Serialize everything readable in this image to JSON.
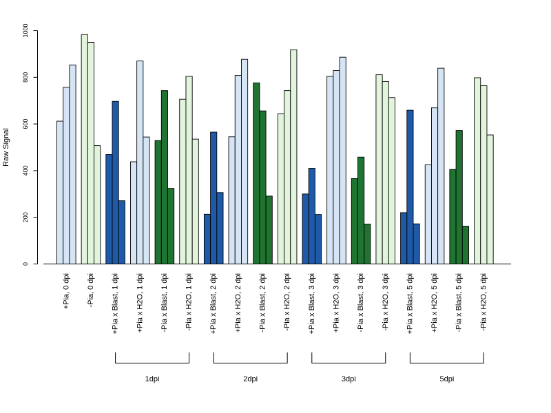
{
  "chart_data": {
    "type": "bar",
    "title": "",
    "ylabel": "Raw Signal",
    "xlabel": "",
    "ylim": [
      0,
      1000
    ],
    "yticks": [
      0,
      200,
      400,
      600,
      800,
      1000
    ],
    "grid": false,
    "legend": "none",
    "colors": {
      "light_blue": "#d6e5f5",
      "light_green": "#e2f5dc",
      "dark_blue": "#1f5aa8",
      "dark_green": "#1f7431"
    },
    "groups": [
      {
        "label": "+Pia, 0 dpi",
        "color": "light_blue",
        "values": [
          612,
          757,
          853
        ]
      },
      {
        "label": "-Pia, 0 dpi",
        "color": "light_green",
        "values": [
          983,
          950,
          507
        ]
      },
      {
        "label": "+Pia x Blast, 1 dpi",
        "color": "dark_blue",
        "values": [
          469,
          697,
          271
        ]
      },
      {
        "label": "+Pia x H2O, 1 dpi",
        "color": "light_blue",
        "values": [
          438,
          870,
          544
        ]
      },
      {
        "label": "-Pia x Blast, 1 dpi",
        "color": "dark_green",
        "values": [
          529,
          743,
          324
        ]
      },
      {
        "label": "-Pia x H2O, 1 dpi",
        "color": "light_green",
        "values": [
          706,
          804,
          535
        ]
      },
      {
        "label": "+Pia x Blast, 2 dpi",
        "color": "dark_blue",
        "values": [
          213,
          565,
          306
        ]
      },
      {
        "label": "+Pia x H2O, 2 dpi",
        "color": "light_blue",
        "values": [
          545,
          808,
          877
        ]
      },
      {
        "label": "-Pia x Blast, 2 dpi",
        "color": "dark_green",
        "values": [
          776,
          656,
          291
        ]
      },
      {
        "label": "-Pia x H2O, 2 dpi",
        "color": "light_green",
        "values": [
          644,
          743,
          918
        ]
      },
      {
        "label": "+Pia x Blast, 3 dpi",
        "color": "dark_blue",
        "values": [
          300,
          410,
          212
        ]
      },
      {
        "label": "+Pia x H2O, 3 dpi",
        "color": "light_blue",
        "values": [
          804,
          829,
          886
        ]
      },
      {
        "label": "-Pia x Blast, 3 dpi",
        "color": "dark_green",
        "values": [
          366,
          458,
          171
        ]
      },
      {
        "label": "-Pia x H2O, 3 dpi",
        "color": "light_green",
        "values": [
          811,
          782,
          713
        ]
      },
      {
        "label": "+Pia x Blast, 5 dpi",
        "color": "dark_blue",
        "values": [
          220,
          659,
          172
        ]
      },
      {
        "label": "+Pia x H2O, 5 dpi",
        "color": "light_blue",
        "values": [
          425,
          669,
          839
        ]
      },
      {
        "label": "-Pia x Blast, 5 dpi",
        "color": "dark_green",
        "values": [
          405,
          572,
          162
        ]
      },
      {
        "label": "-Pia x H2O, 5 dpi",
        "color": "light_green",
        "values": [
          798,
          764,
          553
        ]
      }
    ],
    "timepoint_brackets": [
      {
        "label": "1dpi",
        "from_group": 2,
        "to_group": 5
      },
      {
        "label": "2dpi",
        "from_group": 6,
        "to_group": 9
      },
      {
        "label": "3dpi",
        "from_group": 10,
        "to_group": 13
      },
      {
        "label": "5dpi",
        "from_group": 14,
        "to_group": 17
      }
    ]
  }
}
